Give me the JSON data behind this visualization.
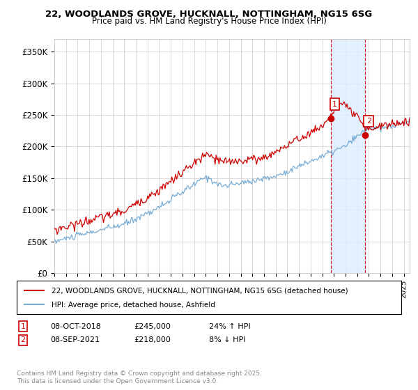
{
  "title_line1": "22, WOODLANDS GROVE, HUCKNALL, NOTTINGHAM, NG15 6SG",
  "title_line2": "Price paid vs. HM Land Registry's House Price Index (HPI)",
  "ylabel_ticks": [
    "£0",
    "£50K",
    "£100K",
    "£150K",
    "£200K",
    "£250K",
    "£300K",
    "£350K"
  ],
  "ytick_values": [
    0,
    50000,
    100000,
    150000,
    200000,
    250000,
    300000,
    350000
  ],
  "ylim": [
    0,
    370000
  ],
  "xlim_start": 1995.0,
  "xlim_end": 2025.5,
  "legend_line1": "22, WOODLANDS GROVE, HUCKNALL, NOTTINGHAM, NG15 6SG (detached house)",
  "legend_line2": "HPI: Average price, detached house, Ashfield",
  "sale1_date": "08-OCT-2018",
  "sale1_price": "£245,000",
  "sale1_hpi": "24% ↑ HPI",
  "sale1_x": 2018.77,
  "sale1_y": 245000,
  "sale2_date": "08-SEP-2021",
  "sale2_price": "£218,000",
  "sale2_hpi": "8% ↓ HPI",
  "sale2_x": 2021.69,
  "sale2_y": 218000,
  "footer": "Contains HM Land Registry data © Crown copyright and database right 2025.\nThis data is licensed under the Open Government Licence v3.0.",
  "red_color": "#cc0000",
  "blue_color": "#7aadd4",
  "bg_shade_color": "#ddeeff",
  "grid_color": "#cccccc",
  "background_color": "#ffffff"
}
